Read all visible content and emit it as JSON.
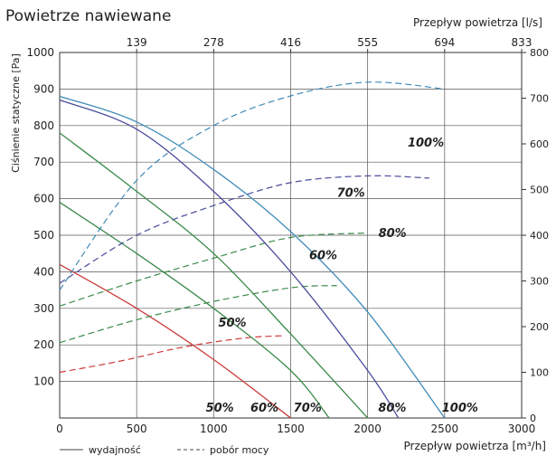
{
  "chart_data": {
    "type": "line",
    "title": "Powietrze nawiewane",
    "xlabel": "Przepływ powietrza [m³/h]",
    "ylabel": "Ciśnienie statyczne [Pa]",
    "x2label": "Przepływ powietrza [l/s]",
    "y2label": "",
    "xlim": [
      0,
      3000
    ],
    "ylim": [
      0,
      1000
    ],
    "y2lim": [
      0,
      800
    ],
    "x_ticks": [
      0,
      500,
      1000,
      1500,
      2000,
      2500,
      3000
    ],
    "y_ticks": [
      100,
      200,
      300,
      400,
      500,
      600,
      700,
      800,
      900,
      1000
    ],
    "x2_ticks": [
      "139",
      "278",
      "416",
      "555",
      "694",
      "833"
    ],
    "y2_ticks": [
      0,
      100,
      200,
      300,
      400,
      500,
      600,
      700,
      800
    ],
    "grid": true,
    "legend": {
      "position": "bottom-left",
      "solid_label": "wydajność",
      "dashed_label": "pobór mocy"
    },
    "series": [
      {
        "label": "50%",
        "color": "#cc3b3b",
        "label_x": 1030,
        "label_y": 250,
        "pressure": [
          [
            0,
            420
          ],
          [
            500,
            300
          ],
          [
            1000,
            160
          ],
          [
            1500,
            0
          ]
        ],
        "power": [
          [
            0,
            100
          ],
          [
            400,
            125
          ],
          [
            800,
            155
          ],
          [
            1200,
            175
          ],
          [
            1450,
            180
          ]
        ]
      },
      {
        "label": "60%",
        "color": "#3a8a4a",
        "label_x": 1620,
        "label_y": 435,
        "pressure": [
          [
            0,
            590
          ],
          [
            500,
            450
          ],
          [
            1000,
            300
          ],
          [
            1500,
            130
          ],
          [
            1750,
            0
          ]
        ],
        "power": [
          [
            0,
            165
          ],
          [
            500,
            215
          ],
          [
            1000,
            255
          ],
          [
            1500,
            285
          ],
          [
            1800,
            290
          ]
        ]
      },
      {
        "label": "70%",
        "color": "#3a8a4a",
        "label_x": 1800,
        "label_y": 605,
        "pressure": [
          [
            0,
            780
          ],
          [
            500,
            620
          ],
          [
            1000,
            450
          ],
          [
            1500,
            230
          ],
          [
            2000,
            0
          ]
        ],
        "power": [
          [
            0,
            245
          ],
          [
            500,
            300
          ],
          [
            1000,
            350
          ],
          [
            1500,
            395
          ],
          [
            2000,
            405
          ]
        ]
      },
      {
        "label": "80%",
        "color": "#4a4d9c",
        "label_x": 2070,
        "label_y": 495,
        "pressure": [
          [
            0,
            870
          ],
          [
            500,
            790
          ],
          [
            1000,
            620
          ],
          [
            1500,
            400
          ],
          [
            2000,
            130
          ],
          [
            2200,
            0
          ]
        ],
        "power": [
          [
            0,
            295
          ],
          [
            500,
            400
          ],
          [
            1000,
            465
          ],
          [
            1500,
            515
          ],
          [
            2000,
            530
          ],
          [
            2400,
            525
          ]
        ]
      },
      {
        "label": "100%",
        "color": "#3f8bb8",
        "label_x": 2260,
        "label_y": 742,
        "pressure": [
          [
            0,
            880
          ],
          [
            500,
            810
          ],
          [
            1000,
            680
          ],
          [
            1500,
            510
          ],
          [
            2000,
            290
          ],
          [
            2500,
            0
          ]
        ],
        "power": [
          [
            0,
            280
          ],
          [
            500,
            520
          ],
          [
            1000,
            640
          ],
          [
            1500,
            705
          ],
          [
            2000,
            735
          ],
          [
            2500,
            720
          ]
        ]
      }
    ],
    "bottom_labels": [
      {
        "text": "50%",
        "x": 1040,
        "y": 30
      },
      {
        "text": "60%",
        "x": 1330,
        "y": 30
      },
      {
        "text": "70%",
        "x": 1610,
        "y": 30
      },
      {
        "text": "80%",
        "x": 2160,
        "y": 30
      },
      {
        "text": "100%",
        "x": 2600,
        "y": 30
      }
    ]
  }
}
